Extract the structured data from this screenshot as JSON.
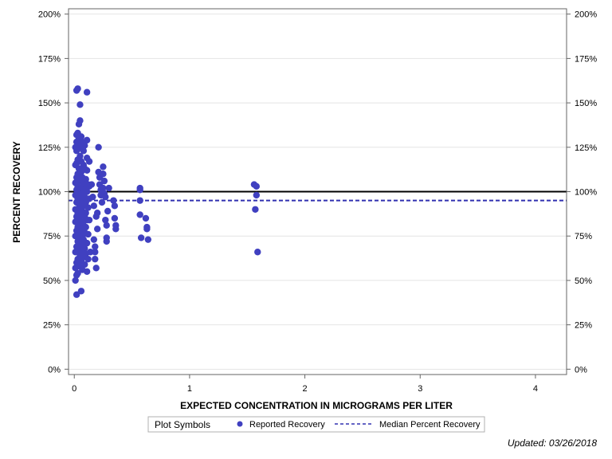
{
  "colors": {
    "marker": "#4040c0",
    "median_line": "#3030b0",
    "reference_line": "#000000",
    "grid": "#e4e4e4",
    "frame": "#666666"
  },
  "legend": {
    "title": "Plot Symbols",
    "reported_label": "Reported Recovery",
    "median_label": "Median Percent Recovery"
  },
  "footnote": "Updated: 03/26/2018",
  "chart_data": {
    "type": "scatter",
    "title": "",
    "xlabel": "EXPECTED CONCENTRATION IN MICROGRAMS PER LITER",
    "ylabel": "PERCENT RECOVERY",
    "xlim": [
      -0.05,
      4.27
    ],
    "ylim": [
      -3,
      203
    ],
    "x_ticks": [
      0,
      1,
      2,
      3,
      4
    ],
    "x_tick_labels": [
      "0",
      "1",
      "2",
      "3",
      "4"
    ],
    "y_ticks": [
      0,
      25,
      50,
      75,
      100,
      125,
      150,
      175,
      200
    ],
    "y_tick_labels": [
      "0%",
      "25%",
      "50%",
      "75%",
      "100%",
      "125%",
      "150%",
      "175%",
      "200%"
    ],
    "y2_tick_labels": [
      "0%",
      "25%",
      "50%",
      "75%",
      "100%",
      "125%",
      "150%",
      "175%",
      "200%"
    ],
    "grid": true,
    "reference_line": 100,
    "median_recovery": 95,
    "series": [
      {
        "name": "Reported Recovery",
        "points": [
          [
            0.02,
            157
          ],
          [
            0.03,
            158
          ],
          [
            0.11,
            156
          ],
          [
            0.05,
            149
          ],
          [
            0.05,
            140
          ],
          [
            0.04,
            138
          ],
          [
            0.03,
            133
          ],
          [
            0.06,
            131
          ],
          [
            0.02,
            132
          ],
          [
            0.04,
            130
          ],
          [
            0.07,
            128
          ],
          [
            0.02,
            128
          ],
          [
            0.06,
            126
          ],
          [
            0.03,
            124
          ],
          [
            0.09,
            126
          ],
          [
            0.04,
            127
          ],
          [
            0.11,
            129
          ],
          [
            0.01,
            125
          ],
          [
            0.08,
            123
          ],
          [
            0.02,
            123
          ],
          [
            0.05,
            120
          ],
          [
            0.11,
            119
          ],
          [
            0.03,
            118
          ],
          [
            0.06,
            117
          ],
          [
            0.02,
            116
          ],
          [
            0.08,
            115
          ],
          [
            0.01,
            115
          ],
          [
            0.04,
            113
          ],
          [
            0.09,
            113
          ],
          [
            0.06,
            111
          ],
          [
            0.11,
            112
          ],
          [
            0.03,
            110
          ],
          [
            0.02,
            108
          ],
          [
            0.07,
            108
          ],
          [
            0.1,
            107
          ],
          [
            0.05,
            106
          ],
          [
            0.01,
            105
          ],
          [
            0.08,
            104
          ],
          [
            0.12,
            104
          ],
          [
            0.03,
            103
          ],
          [
            0.06,
            102
          ],
          [
            0.02,
            101
          ],
          [
            0.09,
            101
          ],
          [
            0.04,
            100
          ],
          [
            0.11,
            100
          ],
          [
            0.07,
            99
          ],
          [
            0.01,
            98
          ],
          [
            0.05,
            98
          ],
          [
            0.09,
            97
          ],
          [
            0.03,
            96
          ],
          [
            0.13,
            96
          ],
          [
            0.06,
            95
          ],
          [
            0.02,
            94
          ],
          [
            0.1,
            94
          ],
          [
            0.04,
            93
          ],
          [
            0.08,
            92
          ],
          [
            0.12,
            91
          ],
          [
            0.01,
            90
          ],
          [
            0.05,
            90
          ],
          [
            0.07,
            89
          ],
          [
            0.03,
            88
          ],
          [
            0.1,
            88
          ],
          [
            0.06,
            87
          ],
          [
            0.02,
            86
          ],
          [
            0.09,
            86
          ],
          [
            0.04,
            85
          ],
          [
            0.11,
            84
          ],
          [
            0.07,
            83
          ],
          [
            0.01,
            83
          ],
          [
            0.05,
            82
          ],
          [
            0.08,
            81
          ],
          [
            0.03,
            80
          ],
          [
            0.1,
            80
          ],
          [
            0.06,
            79
          ],
          [
            0.02,
            78
          ],
          [
            0.09,
            77
          ],
          [
            0.04,
            77
          ],
          [
            0.12,
            76
          ],
          [
            0.07,
            75
          ],
          [
            0.01,
            75
          ],
          [
            0.05,
            74
          ],
          [
            0.08,
            73
          ],
          [
            0.03,
            72
          ],
          [
            0.11,
            71
          ],
          [
            0.06,
            70
          ],
          [
            0.02,
            69
          ],
          [
            0.09,
            68
          ],
          [
            0.04,
            67
          ],
          [
            0.07,
            66
          ],
          [
            0.01,
            66
          ],
          [
            0.1,
            65
          ],
          [
            0.05,
            64
          ],
          [
            0.08,
            63
          ],
          [
            0.03,
            62
          ],
          [
            0.12,
            62
          ],
          [
            0.06,
            61
          ],
          [
            0.02,
            60
          ],
          [
            0.09,
            59
          ],
          [
            0.04,
            58
          ],
          [
            0.01,
            57
          ],
          [
            0.07,
            56
          ],
          [
            0.11,
            55
          ],
          [
            0.03,
            54
          ],
          [
            0.02,
            53
          ],
          [
            0.01,
            50
          ],
          [
            0.02,
            42
          ],
          [
            0.06,
            44
          ],
          [
            0.13,
            117
          ],
          [
            0.13,
            103
          ],
          [
            0.13,
            84
          ],
          [
            0.14,
            66
          ],
          [
            0.15,
            104
          ],
          [
            0.16,
            97
          ],
          [
            0.17,
            92
          ],
          [
            0.17,
            73
          ],
          [
            0.18,
            69
          ],
          [
            0.18,
            66
          ],
          [
            0.18,
            62
          ],
          [
            0.19,
            57
          ],
          [
            0.19,
            86
          ],
          [
            0.2,
            88
          ],
          [
            0.2,
            79
          ],
          [
            0.21,
            125
          ],
          [
            0.21,
            111
          ],
          [
            0.22,
            108
          ],
          [
            0.22,
            104
          ],
          [
            0.23,
            101
          ],
          [
            0.23,
            98
          ],
          [
            0.24,
            94
          ],
          [
            0.25,
            114
          ],
          [
            0.25,
            110
          ],
          [
            0.25,
            102
          ],
          [
            0.26,
            106
          ],
          [
            0.26,
            99
          ],
          [
            0.27,
            97
          ],
          [
            0.27,
            84
          ],
          [
            0.28,
            81
          ],
          [
            0.28,
            74
          ],
          [
            0.28,
            72
          ],
          [
            0.29,
            89
          ],
          [
            0.3,
            102
          ],
          [
            0.34,
            95
          ],
          [
            0.35,
            92
          ],
          [
            0.35,
            85
          ],
          [
            0.36,
            81
          ],
          [
            0.36,
            79
          ],
          [
            0.57,
            102
          ],
          [
            0.57,
            101
          ],
          [
            0.57,
            95
          ],
          [
            0.57,
            87
          ],
          [
            0.58,
            74
          ],
          [
            0.62,
            85
          ],
          [
            0.63,
            80
          ],
          [
            0.63,
            79
          ],
          [
            0.64,
            73
          ],
          [
            1.56,
            104
          ],
          [
            1.58,
            103
          ],
          [
            1.58,
            98
          ],
          [
            1.57,
            90
          ],
          [
            1.59,
            66
          ]
        ]
      }
    ]
  }
}
